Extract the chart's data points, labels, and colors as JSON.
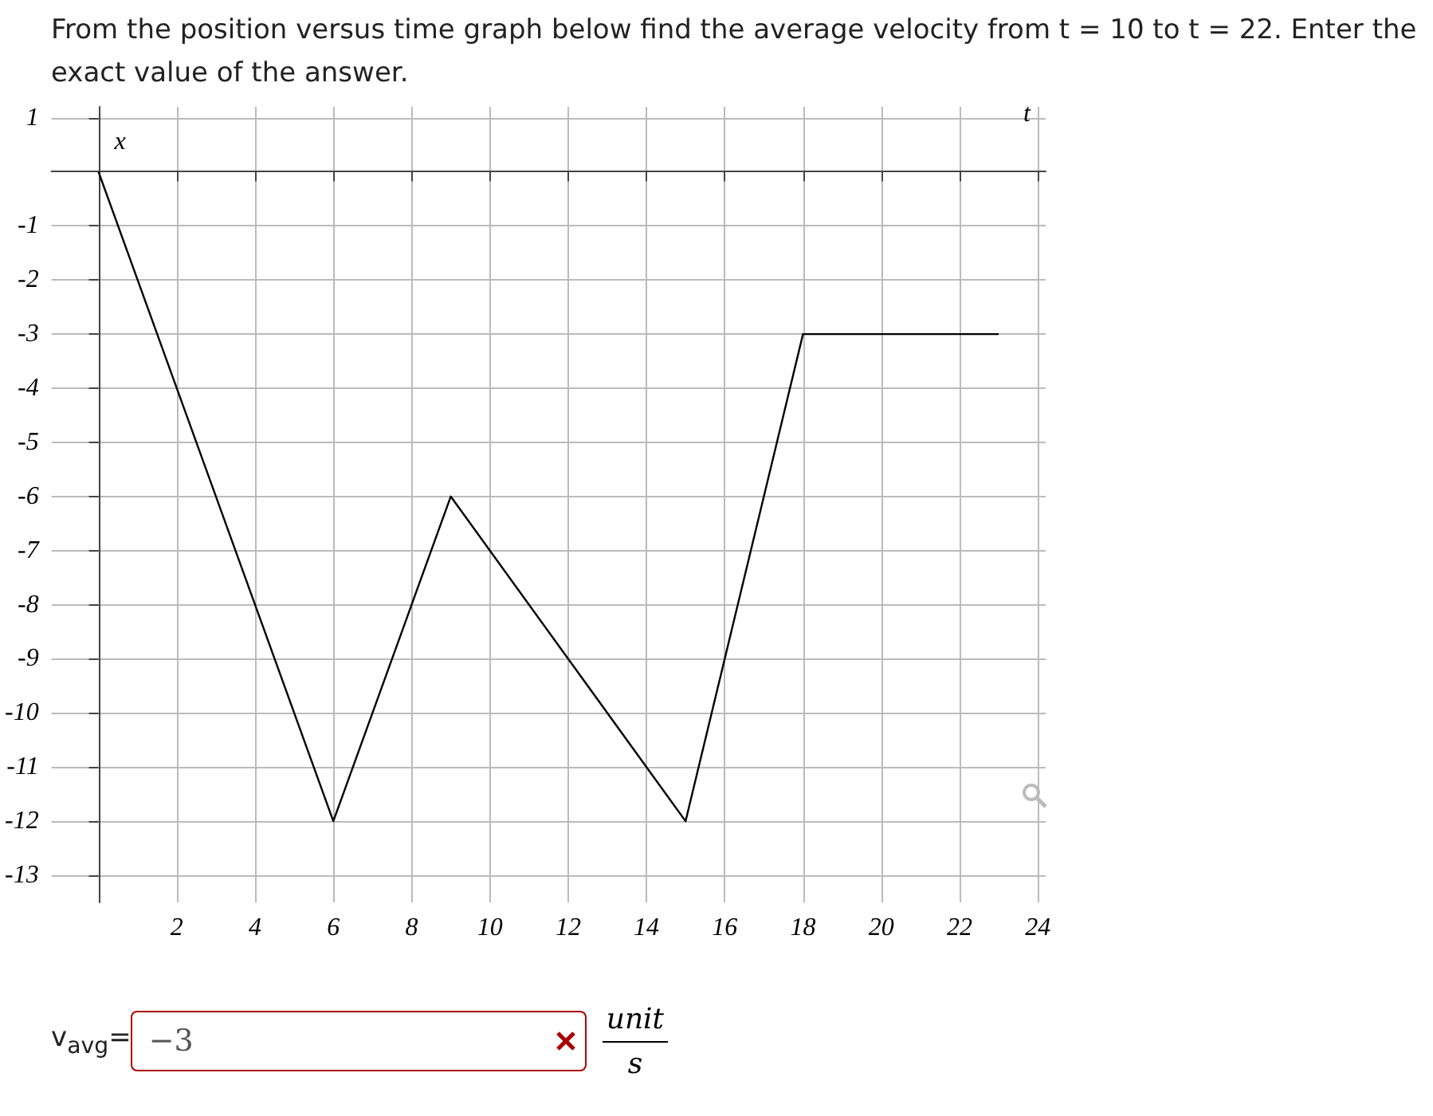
{
  "chart_data": {
    "type": "line",
    "title": "From the position versus time graph below find the average velocity from t = 10 to t = 22. Enter the exact value of the answer.",
    "xlabel": "t",
    "ylabel": "x",
    "x": [
      0,
      6,
      9,
      15,
      18,
      23
    ],
    "values": [
      0,
      -12,
      -6,
      -12,
      -3,
      -3
    ],
    "color": "#000000",
    "xlim": [
      -1.2,
      24.2
    ],
    "ylim": [
      -13.5,
      1.2
    ],
    "xticks": [
      2,
      4,
      6,
      8,
      10,
      12,
      14,
      16,
      18,
      20,
      22,
      24
    ],
    "yticks": [
      1,
      -1,
      -2,
      -3,
      -4,
      -5,
      -6,
      -7,
      -8,
      -9,
      -10,
      -11,
      -12,
      -13
    ],
    "grid": true,
    "marker": "none",
    "annotations": [
      "v$_{avg}$=",
      "−3",
      "unit",
      "s"
    ]
  }
}
